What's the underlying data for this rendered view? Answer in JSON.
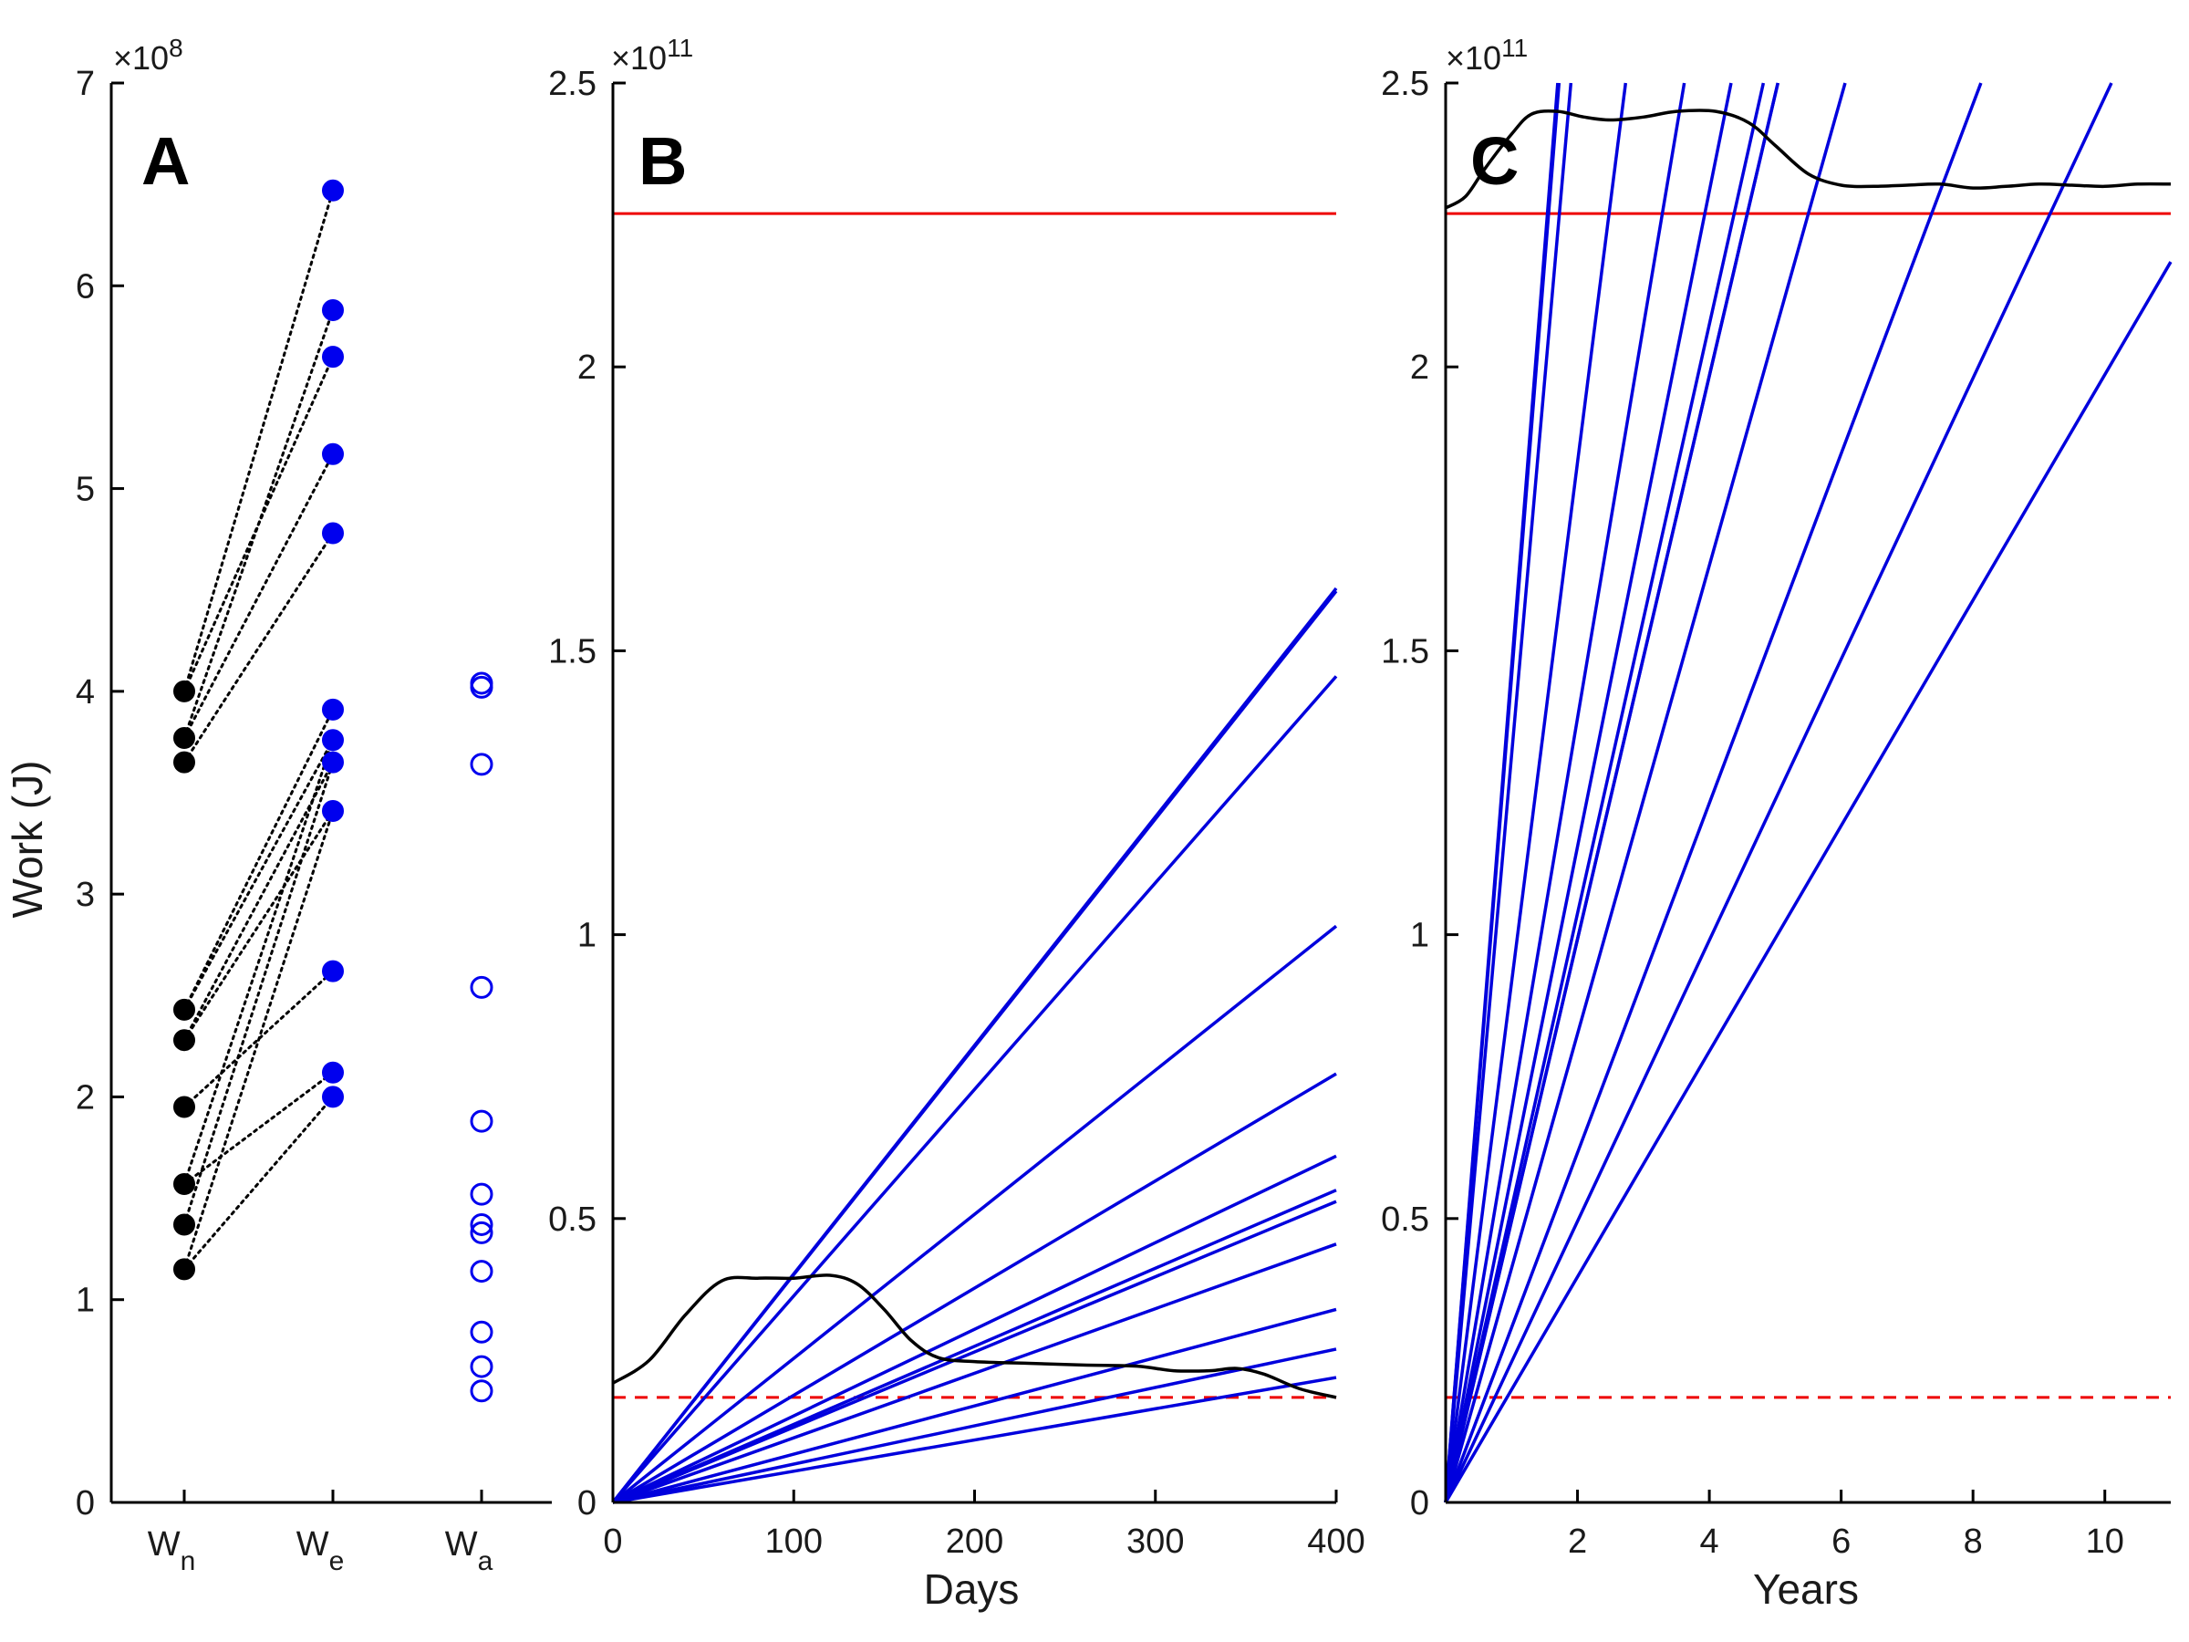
{
  "chart_data": [
    {
      "panel": "A",
      "type": "scatter",
      "ylabel": "Work (J)",
      "y_exponent": "×10",
      "y_exponent_power": "8",
      "ylim": [
        0,
        7
      ],
      "yticks": [
        0,
        1,
        2,
        3,
        4,
        5,
        6,
        7
      ],
      "categories": [
        {
          "base": "W",
          "sub": "n"
        },
        {
          "base": "W",
          "sub": "e"
        },
        {
          "base": "W",
          "sub": "a"
        }
      ],
      "series": [
        {
          "category": 0,
          "style": "filled",
          "color": "#000000",
          "values": [
            4.0,
            3.77,
            3.65,
            2.43,
            2.28,
            1.95,
            1.57,
            1.37,
            1.15
          ]
        },
        {
          "category": 1,
          "style": "filled",
          "color": "#0000ee",
          "values": [
            6.47,
            5.88,
            5.65,
            5.17,
            4.78,
            3.91,
            3.76,
            3.65,
            3.41,
            2.62,
            2.12,
            2.0
          ]
        },
        {
          "category": 2,
          "style": "open",
          "color": "#0000ee",
          "values": [
            4.04,
            4.02,
            3.64,
            2.54,
            1.88,
            1.52,
            1.37,
            1.33,
            1.14,
            0.84,
            0.67,
            0.55
          ]
        }
      ],
      "pairs": [
        [
          4.0,
          5.65
        ],
        [
          4.0,
          6.47
        ],
        [
          3.77,
          5.88
        ],
        [
          3.77,
          5.17
        ],
        [
          3.65,
          4.78
        ],
        [
          2.43,
          3.91
        ],
        [
          2.43,
          3.76
        ],
        [
          2.28,
          3.65
        ],
        [
          2.28,
          3.41
        ],
        [
          1.95,
          2.62
        ],
        [
          1.57,
          3.76
        ],
        [
          1.57,
          2.12
        ],
        [
          1.37,
          3.65
        ],
        [
          1.15,
          2.0
        ],
        [
          1.15,
          3.41
        ]
      ]
    },
    {
      "panel": "B",
      "type": "line",
      "xlabel": "Days",
      "y_exponent": "×10",
      "y_exponent_power": "11",
      "xlim": [
        0,
        400
      ],
      "ylim": [
        0,
        2.5
      ],
      "xticks": [
        0,
        100,
        200,
        300,
        400
      ],
      "yticks": [
        0,
        0.5,
        1,
        1.5,
        2,
        2.5
      ],
      "ytick_labels": [
        "0",
        "0.5",
        "1",
        "1.5",
        "2",
        "2.5"
      ],
      "hlines": [
        {
          "y": 2.27,
          "color": "#ee0000",
          "style": "solid"
        },
        {
          "y": 0.185,
          "color": "#ee0000",
          "style": "dashed"
        }
      ],
      "blue_lines_end_values_at_400": [
        1.61,
        1.605,
        1.455,
        1.015,
        0.755,
        0.61,
        0.55,
        0.53,
        0.455,
        0.34,
        0.27,
        0.22
      ],
      "blue_line_color": "#0000dd",
      "black_curve": {
        "color": "#000000",
        "x": [
          0,
          20,
          40,
          60,
          80,
          100,
          120,
          135,
          150,
          165,
          180,
          200,
          230,
          260,
          290,
          310,
          330,
          345,
          360,
          380,
          400
        ],
        "y": [
          0.21,
          0.25,
          0.33,
          0.39,
          0.395,
          0.395,
          0.4,
          0.385,
          0.34,
          0.285,
          0.255,
          0.248,
          0.245,
          0.242,
          0.24,
          0.232,
          0.232,
          0.236,
          0.226,
          0.2,
          0.185
        ]
      }
    },
    {
      "panel": "C",
      "type": "line",
      "xlabel": "Years",
      "y_exponent": "×10",
      "y_exponent_power": "11",
      "xlim": [
        0,
        11
      ],
      "ylim": [
        0,
        2.5
      ],
      "xticks": [
        2,
        4,
        6,
        8,
        10
      ],
      "yticks": [
        0,
        0.5,
        1,
        1.5,
        2,
        2.5
      ],
      "ytick_labels": [
        "0",
        "0.5",
        "1",
        "1.5",
        "2",
        "2.5"
      ],
      "hlines": [
        {
          "y": 2.27,
          "color": "#ee0000",
          "style": "solid"
        },
        {
          "y": 0.185,
          "color": "#ee0000",
          "style": "dashed"
        }
      ],
      "blue_lines_x_at_top": [
        1.7,
        1.72,
        1.9,
        2.73,
        3.62,
        4.33,
        4.82,
        5.04,
        5.04,
        6.06,
        8.12,
        10.1
      ],
      "blue_line_extra_end": {
        "x": 11,
        "y": 2.185
      },
      "blue_line_color": "#0000dd",
      "black_curve": {
        "color": "#000000",
        "x": [
          0,
          0.3,
          0.6,
          1.0,
          1.3,
          1.7,
          2.1,
          2.5,
          3.0,
          3.5,
          4.1,
          4.6,
          5.0,
          5.5,
          6.0,
          6.5,
          7.0,
          7.5,
          8.0,
          8.5,
          9.0,
          9.5,
          10.0,
          10.5,
          11.0
        ],
        "y": [
          2.28,
          2.3,
          2.35,
          2.41,
          2.445,
          2.45,
          2.44,
          2.435,
          2.44,
          2.45,
          2.45,
          2.43,
          2.39,
          2.34,
          2.32,
          2.318,
          2.32,
          2.322,
          2.315,
          2.318,
          2.322,
          2.32,
          2.318,
          2.322,
          2.322
        ]
      }
    }
  ]
}
